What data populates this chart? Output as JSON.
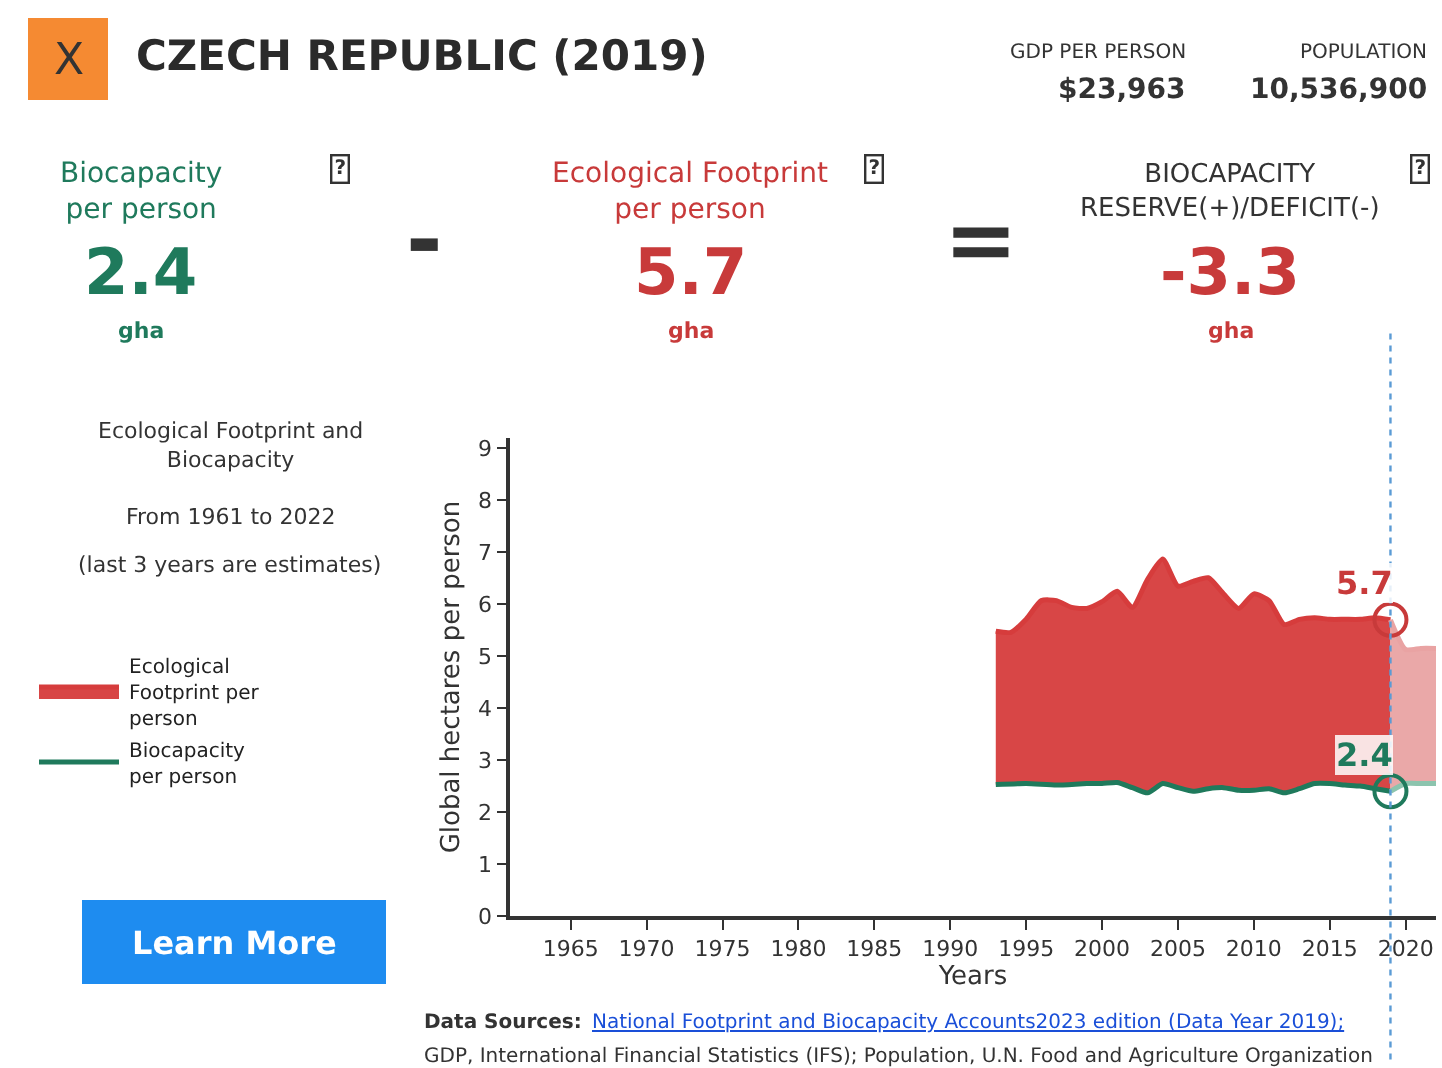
{
  "chart_data": {
    "type": "line",
    "title": "CZECH REPUBLIC (2019)",
    "xlabel": "Years",
    "ylabel": "Global hectares per person",
    "xlim": [
      1961,
      2022
    ],
    "xticks": [
      1965,
      1970,
      1975,
      1980,
      1985,
      1990,
      1995,
      2000,
      2005,
      2010,
      2015,
      2020
    ],
    "ylim": [
      0,
      9.2
    ],
    "yticks": [
      0,
      1,
      2,
      3,
      4,
      5,
      6,
      7,
      8,
      9
    ],
    "legend": "left",
    "marker": "none",
    "line_style": "solid",
    "series": [
      {
        "name": "Biocapacity per person",
        "type": "line",
        "color": "#1f7a5c",
        "x": [
          1993,
          1995,
          1997,
          1999,
          2000,
          2001,
          2002,
          2003,
          2004,
          2005,
          2006,
          2007,
          2008,
          2009,
          2010,
          2011,
          2012,
          2013,
          2014,
          2015,
          2016,
          2017,
          2018,
          2019
        ],
        "values": [
          2.53,
          2.55,
          2.52,
          2.55,
          2.55,
          2.57,
          2.47,
          2.37,
          2.55,
          2.47,
          2.4,
          2.45,
          2.47,
          2.42,
          2.42,
          2.45,
          2.37,
          2.45,
          2.55,
          2.55,
          2.52,
          2.5,
          2.45,
          2.4
        ]
      },
      {
        "name": "Ecological Footprint per person",
        "type": "area",
        "color": "#d63c3c",
        "x": [
          1993,
          1994,
          1995,
          1996,
          1997,
          1998,
          1999,
          2000,
          2001,
          2002,
          2003,
          2004,
          2005,
          2006,
          2007,
          2008,
          2009,
          2010,
          2011,
          2012,
          2013,
          2014,
          2015,
          2016,
          2017,
          2018,
          2019
        ],
        "values": [
          5.48,
          5.46,
          5.71,
          6.07,
          6.07,
          5.94,
          5.92,
          6.05,
          6.25,
          5.94,
          6.48,
          6.87,
          6.35,
          6.44,
          6.51,
          6.2,
          5.92,
          6.2,
          6.07,
          5.61,
          5.71,
          5.74,
          5.71,
          5.71,
          5.71,
          5.74,
          5.7
        ]
      },
      {
        "type": "line",
        "color": "#8cc4ae",
        "x": [
          2019,
          2020,
          2021,
          2022
        ],
        "values": [
          2.4,
          2.55,
          2.55,
          2.55
        ]
      },
      {
        "type": "area",
        "color": "#e9a3a3",
        "x": [
          2019,
          2020,
          2021,
          2022
        ],
        "values": [
          5.7,
          5.13,
          5.15,
          5.15
        ]
      }
    ],
    "ref_lines": [
      {
        "axis": "x",
        "value": 2019,
        "color": "#5b9bd5",
        "line_style": "dotted"
      }
    ],
    "annotations": [
      "GDP PER PERSON",
      "$23,963",
      "POPULATION",
      "10,536,900",
      "Biocapacity per person",
      "2.4",
      "gha",
      "Ecological Footprint per person",
      "5.7",
      "gha",
      "BIOCAPACITY RESERVE(+)/DEFICIT(-)",
      "-3.3",
      "gha",
      "-",
      "=",
      "Ecological Footprint and Biocapacity",
      "From 1961 to 2022",
      "(last 3 years are estimates)",
      "Learn More",
      "X",
      "?",
      "?",
      "?",
      "Data Sources:",
      "National Footprint and Biocapacity Accounts2023 edition (Data Year 2019);",
      "GDP, International Financial Statistics (IFS); Population, U.N. Food and Agriculture Organization",
      {
        "text": "5.7",
        "x": 2019,
        "y": 5.7
      },
      {
        "text": "2.4",
        "x": 2019,
        "y": 2.4
      }
    ]
  }
}
